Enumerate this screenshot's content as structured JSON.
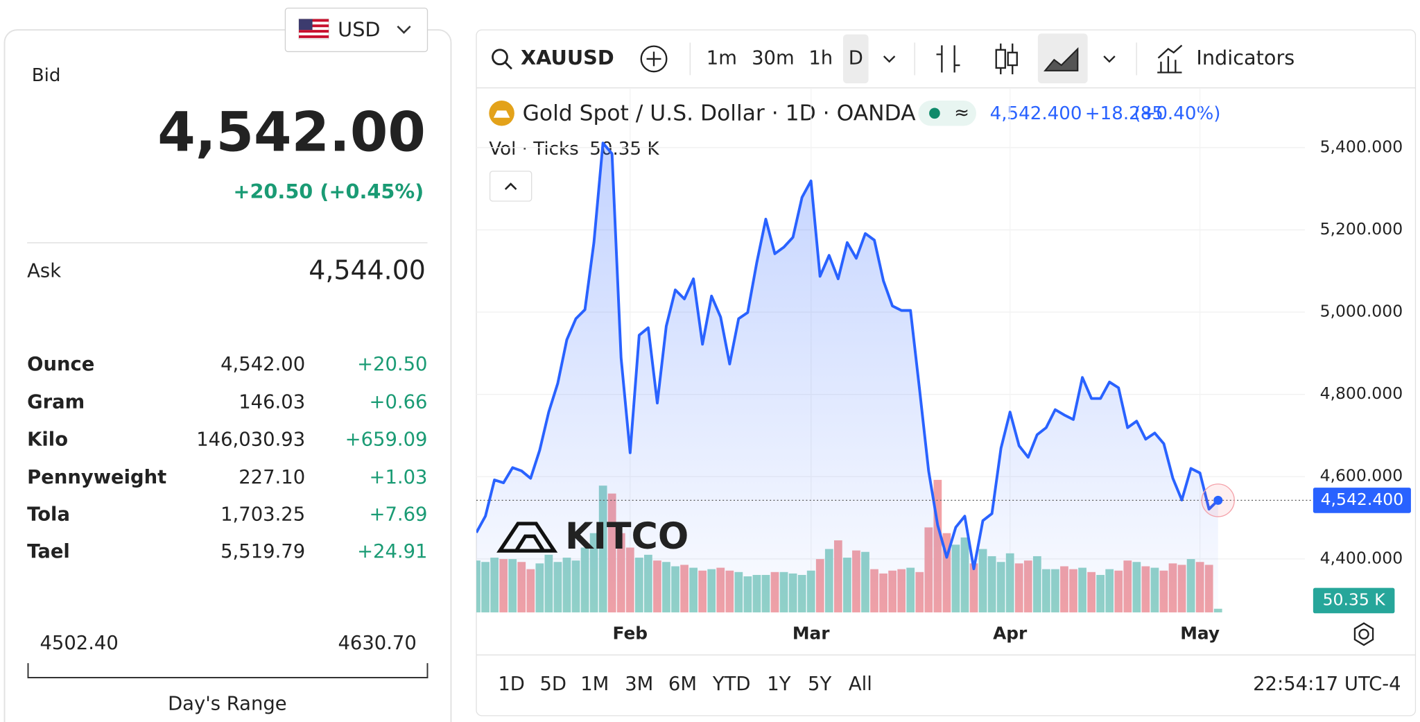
{
  "currency": "USD",
  "quote": {
    "bid_label": "Bid",
    "bid": "4,542.00",
    "bid_change": "+20.50 (+0.45%)",
    "ask_label": "Ask",
    "ask": "4,544.00"
  },
  "table": {
    "rows": [
      [
        "Ounce",
        "4,542.00",
        "+20.50"
      ],
      [
        "Gram",
        "146.03",
        "+0.66"
      ],
      [
        "Kilo",
        "146,030.93",
        "+659.09"
      ],
      [
        "Pennyweight",
        "227.10",
        "+1.03"
      ],
      [
        "Tola",
        "1,703.25",
        "+7.69"
      ],
      [
        "Tael",
        "5,519.79",
        "+24.91"
      ]
    ]
  },
  "range": {
    "low": "4502.40",
    "high": "4630.70",
    "label": "Day's Range"
  },
  "toolbar": {
    "intervals": [
      "1m",
      "30m",
      "1h",
      "D"
    ],
    "indicators": "Indicators"
  },
  "watermark": "KITCO",
  "periods": [
    "1D",
    "5D",
    "1M",
    "3M",
    "6M",
    "YTD",
    "1Y",
    "5Y",
    "All"
  ],
  "clock": "22:54:17 UTC-4",
  "chart_data": {
    "type": "area",
    "title": "Gold Spot / U.S. Dollar · 1D · OANDA",
    "categories": [
      null,
      null,
      null,
      null,
      null,
      null,
      null,
      null,
      null,
      null,
      null,
      null,
      null,
      null,
      null,
      null,
      null,
      "Feb",
      null,
      null,
      null,
      null,
      null,
      null,
      null,
      null,
      null,
      null,
      null,
      null,
      null,
      null,
      null,
      null,
      null,
      null,
      null,
      "Mar",
      null,
      null,
      null,
      null,
      null,
      null,
      null,
      null,
      null,
      null,
      null,
      null,
      null,
      null,
      null,
      null,
      null,
      null,
      null,
      null,
      null,
      "Apr",
      null,
      null,
      null,
      null,
      null,
      null,
      null,
      null,
      null,
      null,
      null,
      null,
      null,
      null,
      null,
      null,
      null,
      null,
      null,
      null,
      "May",
      null,
      null
    ],
    "series": [
      {
        "name": "XAUUSD",
        "color": "#2962ff",
        "values": [
          4464,
          4504,
          4592,
          4585,
          4622,
          4614,
          4596,
          4664,
          4757,
          4827,
          4933,
          4984,
          5006,
          5169,
          5411,
          5385,
          4889,
          4658,
          4944,
          4962,
          4779,
          4966,
          5054,
          5032,
          5081,
          4922,
          5039,
          4988,
          4874,
          4984,
          4999,
          5120,
          5226,
          5142,
          5158,
          5182,
          5279,
          5319,
          5087,
          5138,
          5081,
          5169,
          5131,
          5191,
          5175,
          5076,
          5015,
          5004,
          5004,
          4812,
          4614,
          4482,
          4404,
          4477,
          4504,
          4376,
          4493,
          4510,
          4669,
          4757,
          4675,
          4647,
          4702,
          4719,
          4763,
          4750,
          4739,
          4841,
          4790,
          4790,
          4830,
          4816,
          4719,
          4735,
          4691,
          4706,
          4680,
          4596,
          4543,
          4620,
          4609,
          4521,
          4542.4
        ],
        "last_label": "4,542.400",
        "change_label": "+18.285",
        "change_percent_label": "(+0.40%)"
      },
      {
        "name": "Vol · Ticks",
        "type": "bar",
        "axis": "y2",
        "values": [
          720,
          700,
          760,
          740,
          740,
          700,
          600,
          680,
          800,
          700,
          760,
          720,
          900,
          1100,
          1760,
          1650,
          1100,
          900,
          760,
          800,
          720,
          700,
          640,
          660,
          620,
          580,
          600,
          620,
          580,
          560,
          500,
          520,
          520,
          560,
          560,
          540,
          520,
          580,
          740,
          880,
          1000,
          760,
          860,
          840,
          600,
          540,
          580,
          600,
          620,
          560,
          1180,
          1840,
          1100,
          940,
          1040,
          680,
          880,
          780,
          700,
          820,
          680,
          720,
          780,
          600,
          600,
          640,
          600,
          620,
          560,
          520,
          600,
          580,
          720,
          700,
          640,
          620,
          580,
          680,
          660,
          740,
          700,
          660,
          50.35
        ],
        "last_label": "50.35 K",
        "colors": [
          "#92d2c7",
          "#92d2c7",
          "#92d2c7",
          "#f2a1a5",
          "#92d2c7",
          "#f2a1a5",
          "#f2a1a5",
          "#92d2c7",
          "#92d2c7",
          "#92d2c7",
          "#92d2c7",
          "#92d2c7",
          "#92d2c7",
          "#92d2c7",
          "#92d2c7",
          "#f2a1a5",
          "#f2a1a5",
          "#f2a1a5",
          "#92d2c7",
          "#92d2c7",
          "#f2a1a5",
          "#92d2c7",
          "#92d2c7",
          "#f2a1a5",
          "#92d2c7",
          "#f2a1a5",
          "#92d2c7",
          "#f2a1a5",
          "#f2a1a5",
          "#92d2c7",
          "#92d2c7",
          "#92d2c7",
          "#92d2c7",
          "#f2a1a5",
          "#92d2c7",
          "#92d2c7",
          "#92d2c7",
          "#92d2c7",
          "#f2a1a5",
          "#92d2c7",
          "#f2a1a5",
          "#92d2c7",
          "#f2a1a5",
          "#92d2c7",
          "#f2a1a5",
          "#f2a1a5",
          "#f2a1a5",
          "#f2a1a5",
          "#92d2c7",
          "#f2a1a5",
          "#f2a1a5",
          "#f2a1a5",
          "#f2a1a5",
          "#92d2c7",
          "#92d2c7",
          "#f2a1a5",
          "#92d2c7",
          "#92d2c7",
          "#92d2c7",
          "#92d2c7",
          "#f2a1a5",
          "#f2a1a5",
          "#92d2c7",
          "#92d2c7",
          "#92d2c7",
          "#f2a1a5",
          "#f2a1a5",
          "#92d2c7",
          "#f2a1a5",
          "#92d2c7",
          "#92d2c7",
          "#f2a1a5",
          "#f2a1a5",
          "#92d2c7",
          "#f2a1a5",
          "#92d2c7",
          "#f2a1a5",
          "#f2a1a5",
          "#f2a1a5",
          "#92d2c7",
          "#f2a1a5",
          "#f2a1a5",
          "#92d2c7"
        ]
      }
    ],
    "ylim": [
      4270,
      5543
    ],
    "yticks": [
      {
        "value": 4400,
        "label": "4,400.000"
      },
      {
        "value": 4600,
        "label": "4,600.000"
      },
      {
        "value": 4800,
        "label": "4,800.000"
      },
      {
        "value": 5000,
        "label": "5,000.000"
      },
      {
        "value": 5200,
        "label": "5,200.000"
      },
      {
        "value": 5400,
        "label": "5,400.000"
      }
    ],
    "y2lim": [
      0,
      7270
    ],
    "grid": true
  }
}
